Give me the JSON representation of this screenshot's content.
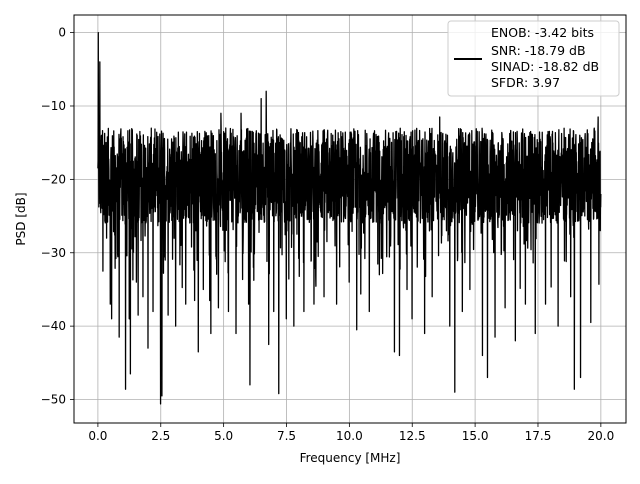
{
  "chart_data": {
    "type": "line",
    "title": "",
    "xlabel": "Frequency [MHz]",
    "ylabel": "PSD [dB]",
    "xlim": [
      -0.95,
      21.0
    ],
    "ylim": [
      -53.2,
      2.4
    ],
    "x_ticks": [
      0.0,
      2.5,
      5.0,
      7.5,
      10.0,
      12.5,
      15.0,
      17.5,
      20.0
    ],
    "x_tick_labels": [
      "0.0",
      "2.5",
      "5.0",
      "7.5",
      "10.0",
      "12.5",
      "15.0",
      "17.5",
      "20.0"
    ],
    "y_ticks": [
      0,
      -10,
      -20,
      -30,
      -40,
      -50
    ],
    "y_tick_labels": [
      "0",
      "−10",
      "−20",
      "−30",
      "−40",
      "−50"
    ],
    "grid": true,
    "legend_position": "top-right",
    "legend_lines": [
      "ENOB: -3.42 bits",
      "SNR: -18.79 dB",
      "SINAD: -18.82 dB",
      "SFDR: 3.97"
    ],
    "series": [
      {
        "color": "#000000",
        "x_range": [
          0.0,
          20.0
        ],
        "description_noise_floor_db": [
          -26.0,
          -13.0
        ],
        "points": [
          [
            0.0,
            -18.5
          ],
          [
            0.02,
            0.0
          ],
          [
            0.05,
            -12.0
          ],
          [
            0.08,
            -4.0
          ],
          [
            0.11,
            -24.0
          ],
          [
            0.15,
            -14.0
          ],
          [
            0.2,
            -32.5
          ],
          [
            0.35,
            -28.0
          ],
          [
            0.48,
            -22.0
          ],
          [
            0.5,
            -37.0
          ],
          [
            0.55,
            -39.0
          ],
          [
            0.85,
            -41.5
          ],
          [
            1.1,
            -48.6
          ],
          [
            1.25,
            -39.0
          ],
          [
            1.3,
            -46.5
          ],
          [
            1.6,
            -38.5
          ],
          [
            1.8,
            -36.0
          ],
          [
            2.0,
            -43.0
          ],
          [
            2.2,
            -38.0
          ],
          [
            2.5,
            -50.6
          ],
          [
            2.55,
            -49.5
          ],
          [
            2.8,
            -38.5
          ],
          [
            3.1,
            -40.0
          ],
          [
            3.5,
            -37.0
          ],
          [
            3.85,
            -36.5
          ],
          [
            4.0,
            -43.5
          ],
          [
            4.2,
            -35.0
          ],
          [
            4.45,
            -36.5
          ],
          [
            4.5,
            -41.0
          ],
          [
            4.8,
            -37.5
          ],
          [
            4.9,
            -11.0
          ],
          [
            5.2,
            -38.0
          ],
          [
            5.5,
            -41.0
          ],
          [
            5.7,
            -11.0
          ],
          [
            6.0,
            -37.0
          ],
          [
            6.05,
            -48.0
          ],
          [
            6.5,
            -9.0
          ],
          [
            6.7,
            -8.0
          ],
          [
            6.8,
            -42.5
          ],
          [
            7.0,
            -38.0
          ],
          [
            7.2,
            -49.2
          ],
          [
            7.5,
            -39.0
          ],
          [
            7.8,
            -40.0
          ],
          [
            8.2,
            -38.0
          ],
          [
            8.6,
            -37.0
          ],
          [
            9.0,
            -36.0
          ],
          [
            9.5,
            -37.0
          ],
          [
            10.0,
            -34.0
          ],
          [
            10.3,
            -40.5
          ],
          [
            10.8,
            -38.0
          ],
          [
            11.2,
            -33.0
          ],
          [
            11.8,
            -43.5
          ],
          [
            12.0,
            -44.0
          ],
          [
            12.3,
            -35.0
          ],
          [
            12.5,
            -39.0
          ],
          [
            13.0,
            -41.0
          ],
          [
            13.3,
            -36.0
          ],
          [
            13.6,
            -11.5
          ],
          [
            14.0,
            -40.0
          ],
          [
            14.2,
            -49.0
          ],
          [
            14.5,
            -38.0
          ],
          [
            14.8,
            -35.0
          ],
          [
            15.3,
            -44.0
          ],
          [
            15.5,
            -47.0
          ],
          [
            15.8,
            -41.5
          ],
          [
            16.2,
            -37.5
          ],
          [
            16.6,
            -42.0
          ],
          [
            17.0,
            -37.0
          ],
          [
            17.4,
            -41.0
          ],
          [
            17.8,
            -37.0
          ],
          [
            18.3,
            -40.0
          ],
          [
            18.8,
            -36.0
          ],
          [
            18.95,
            -48.6
          ],
          [
            19.2,
            -47.0
          ],
          [
            19.6,
            -39.5
          ],
          [
            19.9,
            -11.5
          ],
          [
            20.0,
            -22.0
          ]
        ]
      }
    ]
  }
}
